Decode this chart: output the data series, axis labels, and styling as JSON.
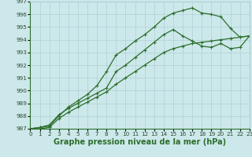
{
  "line1": {
    "x": [
      0,
      1,
      2,
      3,
      4,
      5,
      6,
      7,
      8,
      9,
      10,
      11,
      12,
      13,
      14,
      15,
      16,
      17,
      18,
      19,
      20,
      21,
      22,
      23
    ],
    "y": [
      987.0,
      987.1,
      987.2,
      988.0,
      988.7,
      989.2,
      989.7,
      990.4,
      991.5,
      992.8,
      993.3,
      993.9,
      994.4,
      995.0,
      995.7,
      996.1,
      996.3,
      996.5,
      996.1,
      996.0,
      995.8,
      994.9,
      994.2,
      994.3
    ]
  },
  "line2": {
    "x": [
      0,
      1,
      2,
      3,
      4,
      5,
      6,
      7,
      8,
      9,
      10,
      11,
      12,
      13,
      14,
      15,
      16,
      17,
      18,
      19,
      20,
      21,
      22,
      23
    ],
    "y": [
      987.0,
      987.1,
      987.3,
      988.1,
      988.6,
      989.0,
      989.4,
      989.8,
      990.2,
      991.5,
      992.0,
      992.6,
      993.2,
      993.8,
      994.4,
      994.8,
      994.3,
      993.9,
      993.5,
      993.4,
      993.7,
      993.3,
      993.4,
      994.3
    ]
  },
  "line3": {
    "x": [
      0,
      1,
      2,
      3,
      4,
      5,
      6,
      7,
      8,
      9,
      10,
      11,
      12,
      13,
      14,
      15,
      16,
      17,
      18,
      19,
      20,
      21,
      22,
      23
    ],
    "y": [
      987.0,
      987.0,
      987.1,
      987.8,
      988.3,
      988.7,
      989.1,
      989.5,
      989.9,
      990.5,
      991.0,
      991.5,
      992.0,
      992.5,
      993.0,
      993.3,
      993.5,
      993.7,
      993.8,
      993.9,
      994.0,
      994.1,
      994.2,
      994.3
    ]
  },
  "line_color": "#2d6e2d",
  "marker": "+",
  "marker_size": 3,
  "xlim": [
    0,
    23
  ],
  "ylim": [
    987,
    997
  ],
  "xticks": [
    0,
    1,
    2,
    3,
    4,
    5,
    6,
    7,
    8,
    9,
    10,
    11,
    12,
    13,
    14,
    15,
    16,
    17,
    18,
    19,
    20,
    21,
    22,
    23
  ],
  "yticks": [
    987,
    988,
    989,
    990,
    991,
    992,
    993,
    994,
    995,
    996,
    997
  ],
  "xlabel": "Graphe pression niveau de la mer (hPa)",
  "bg_color": "#cce8ea",
  "grid_color": "#aed0d4",
  "line_width": 0.9,
  "tick_fontsize": 5.2,
  "xlabel_fontsize": 7.0
}
